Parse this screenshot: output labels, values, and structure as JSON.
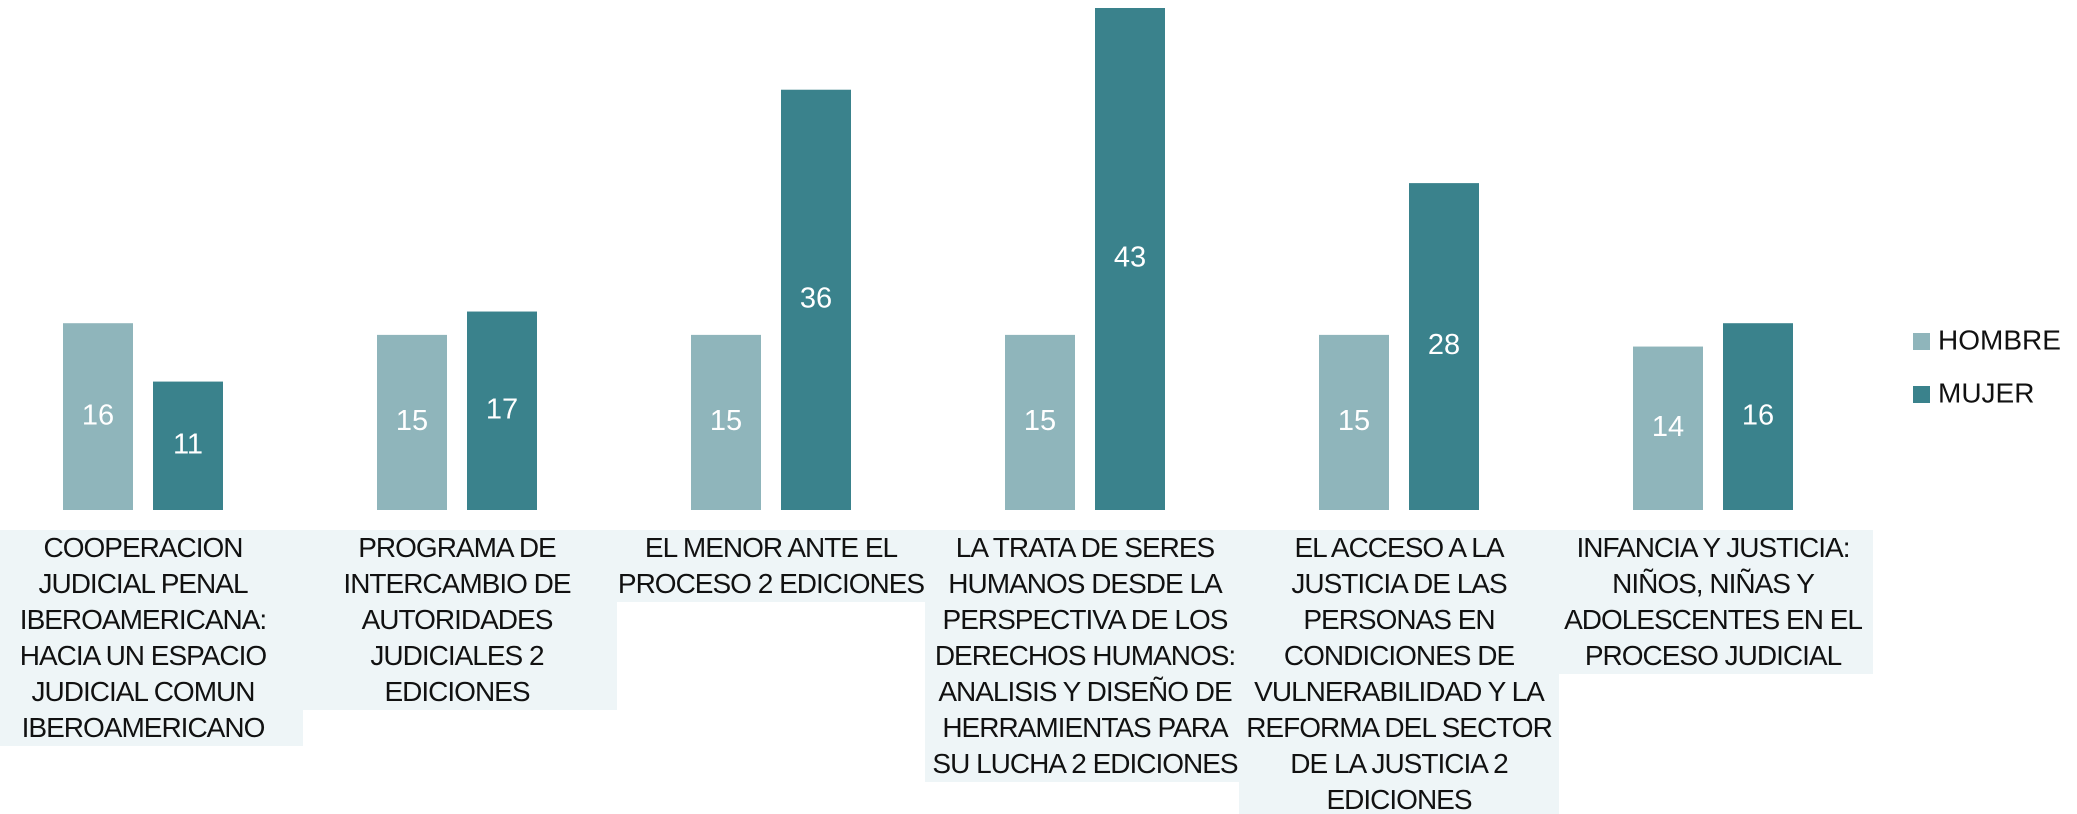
{
  "chart_data": {
    "type": "bar",
    "categories": [
      "COOPERACION JUDICIAL PENAL IBEROAMERICANA: HACIA UN ESPACIO JUDICIAL COMUN IBEROAMERICANO",
      "PROGRAMA DE INTERCAMBIO DE AUTORIDADES JUDICIALES 2 EDICIONES",
      "EL MENOR ANTE EL PROCESO 2 EDICIONES",
      "LA TRATA DE SERES HUMANOS DESDE LA PERSPECTIVA DE LOS DERECHOS HUMANOS: ANALISIS Y DISEÑO DE HERRAMIENTAS PARA SU LUCHA 2 EDICIONES",
      "EL ACCESO A LA JUSTICIA DE LAS PERSONAS EN CONDICIONES DE VULNERABILIDAD Y LA REFORMA DEL SECTOR DE LA JUSTICIA 2 EDICIONES",
      "INFANCIA Y JUSTICIA: NIÑOS, NIÑAS Y ADOLESCENTES EN EL PROCESO JUDICIAL"
    ],
    "series": [
      {
        "name": "HOMBRE",
        "color": "#8fb5bb",
        "values": [
          16,
          15,
          15,
          15,
          15,
          14
        ]
      },
      {
        "name": "MUJER",
        "color": "#3a828c",
        "values": [
          11,
          17,
          36,
          43,
          28,
          16
        ]
      }
    ],
    "legend": "right"
  }
}
